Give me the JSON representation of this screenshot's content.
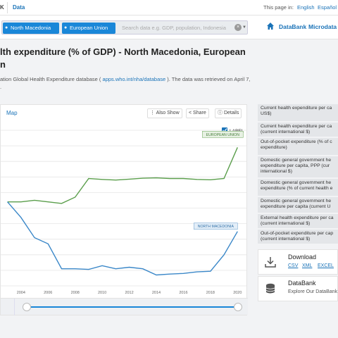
{
  "header": {
    "brand": "K",
    "data_link": "Data",
    "page_in_label": "This page in:",
    "lang_en": "English",
    "lang_es": "Español"
  },
  "search": {
    "chips": [
      "North Macedonia",
      "European Union"
    ],
    "placeholder": "Search data e.g. GDP, population, Indonesia",
    "clear_icon": "×",
    "databank": "DataBank",
    "microdata": "Microdata"
  },
  "title": {
    "line1": "lth expenditure (% of GDP) - North Macedonia, European",
    "line2": "n",
    "source_prefix": "ation Global Health Expenditure database (",
    "source_link": "apps.who.int/nha/database",
    "source_suffix": "). The data was retrieved on April 7,",
    "source_line2": "."
  },
  "chart_panel": {
    "tab_map": "Map",
    "also_show": "Also Show",
    "share": "Share",
    "details": "Details",
    "label_toggle": "LABEL"
  },
  "chart_data": {
    "type": "line",
    "x_tick_labels": [
      "2004",
      "2006",
      "2008",
      "2010",
      "2012",
      "2014",
      "2016",
      "2018",
      "2020"
    ],
    "gridlines": true,
    "series": [
      {
        "name": "EUROPEAN UNION",
        "color": "#5a9e4b",
        "x": [
          2003,
          2004,
          2005,
          2006,
          2007,
          2008,
          2009,
          2010,
          2011,
          2012,
          2013,
          2014,
          2015,
          2016,
          2017,
          2018,
          2019,
          2020
        ],
        "y": [
          8.6,
          8.6,
          8.65,
          8.6,
          8.55,
          8.75,
          9.35,
          9.32,
          9.3,
          9.33,
          9.36,
          9.37,
          9.35,
          9.35,
          9.32,
          9.31,
          9.35,
          10.35
        ]
      },
      {
        "name": "NORTH MACEDONIA",
        "color": "#3a87c8",
        "x": [
          2003,
          2004,
          2005,
          2006,
          2007,
          2008,
          2009,
          2010,
          2011,
          2012,
          2013,
          2014,
          2015,
          2016,
          2017,
          2018,
          2019,
          2020
        ],
        "y": [
          8.6,
          8.1,
          7.45,
          7.25,
          6.45,
          6.45,
          6.43,
          6.55,
          6.45,
          6.5,
          6.45,
          6.25,
          6.28,
          6.3,
          6.35,
          6.37,
          6.9,
          7.65
        ]
      }
    ]
  },
  "side_list": [
    [
      "Current health expenditure per ca",
      "US$)"
    ],
    [
      "Current health expenditure per ca",
      "(current international $)"
    ],
    [
      "Out-of-pocket expenditure (% of c",
      "expenditure)"
    ],
    [
      "Domestic general government he",
      "expenditure per capita, PPP (cur",
      "international $)"
    ],
    [
      "Domestic general government he",
      "expenditure (% of current health e"
    ],
    [
      "Domestic general government he",
      "expenditure per capita (current U"
    ],
    [
      "External health expenditure per ca",
      "(current international $)"
    ],
    [
      "Out-of-pocket expenditure per cap",
      "(current international $)"
    ]
  ],
  "download": {
    "title": "Download",
    "csv": "CSV",
    "xml": "XML",
    "excel": "EXCEL"
  },
  "databank_card": {
    "title": "DataBank",
    "desc": "Explore Our DataBank"
  }
}
